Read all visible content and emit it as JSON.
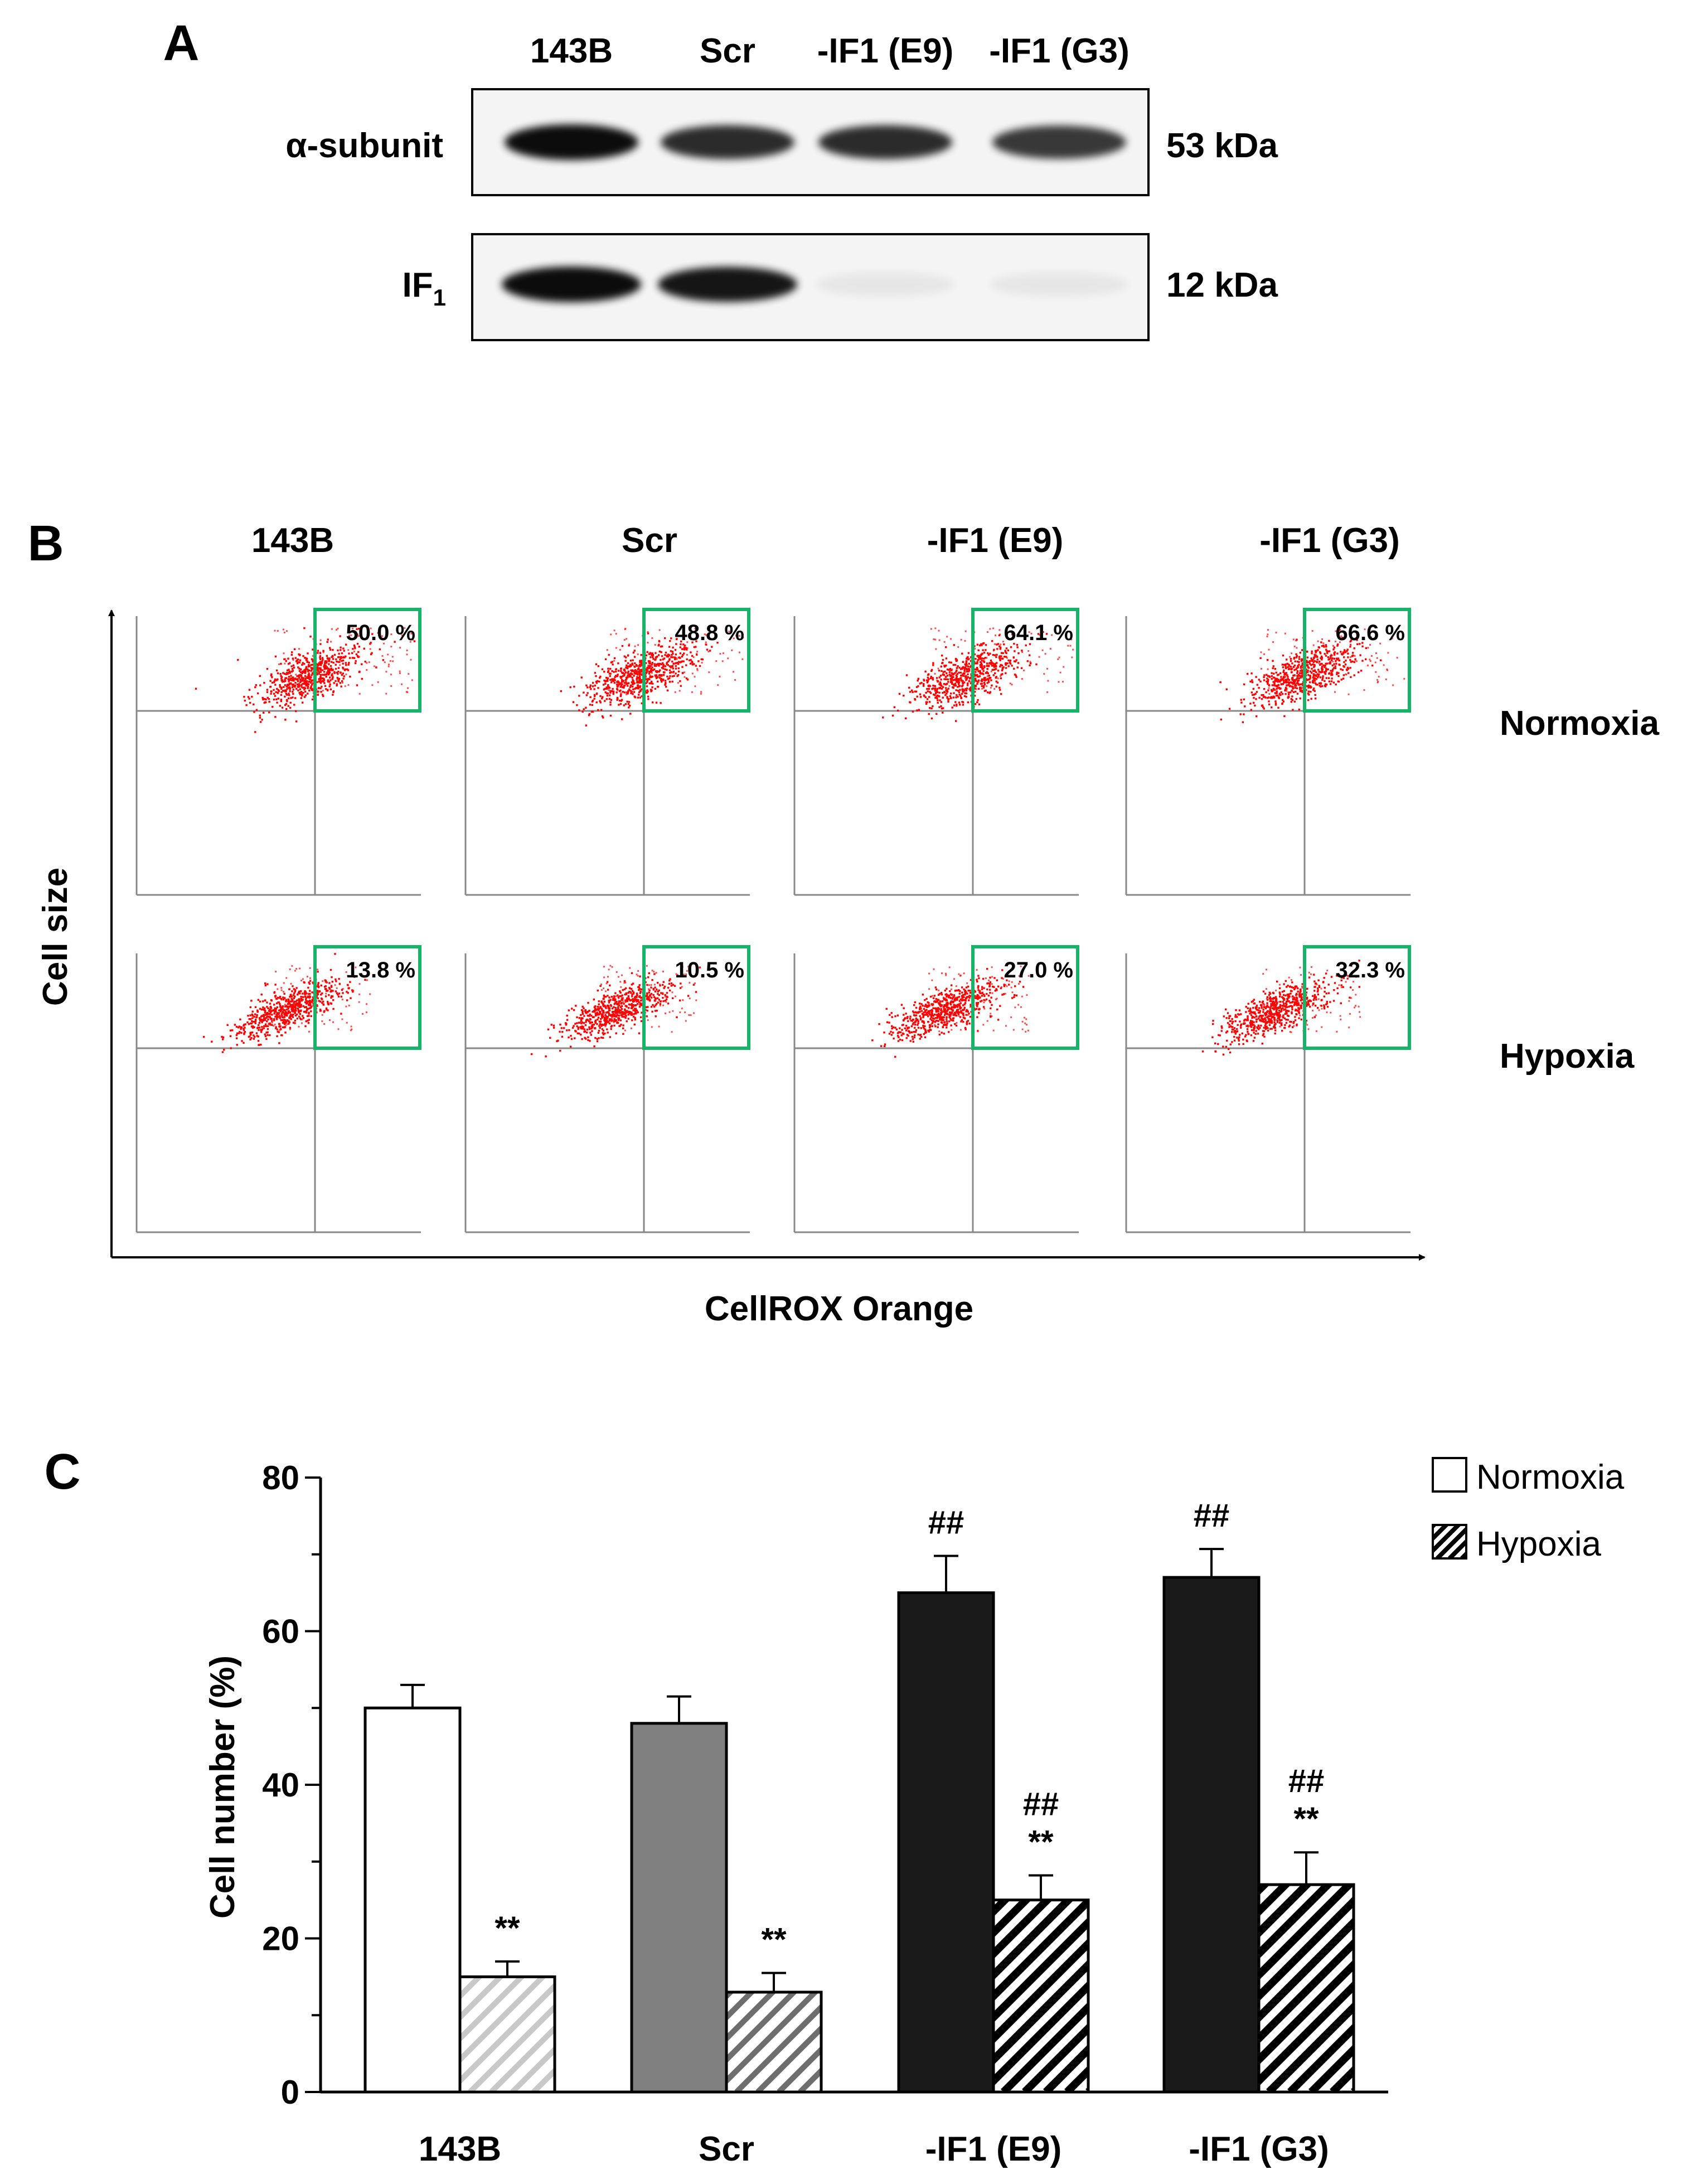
{
  "panel_a": {
    "label": "A",
    "lanes": [
      "143B",
      "Scr",
      "-IF1 (E9)",
      "-IF1 (G3)"
    ],
    "blots": [
      {
        "name": "α-subunit",
        "size": "53 kDa",
        "intensity": [
          1.0,
          0.85,
          0.85,
          0.8
        ]
      },
      {
        "name": "IF",
        "subscript": "1",
        "size": "12 kDa",
        "intensity": [
          1.0,
          0.95,
          0.0,
          0.0
        ]
      }
    ]
  },
  "panel_b": {
    "label": "B",
    "columns": [
      "143B",
      "Scr",
      "-IF1 (E9)",
      "-IF1 (G3)"
    ],
    "rows": [
      "Normoxia",
      "Hypoxia"
    ],
    "percents": [
      [
        "50.0 %",
        "48.8 %",
        "64.1 %",
        "66.6 %"
      ],
      [
        "13.8 %",
        "10.5 %",
        "27.0 %",
        "32.3 %"
      ]
    ],
    "ylabel": "Cell size",
    "xlabel": "CellROX Orange",
    "dot_color": "#ff0000",
    "gate_color": "#16b368"
  },
  "chart_data": {
    "type": "bar",
    "label": "C",
    "categories": [
      "143B",
      "Scr",
      "-IF1 (E9)",
      "-IF1 (G3)"
    ],
    "ylabel": "Cell number (%)",
    "ylim": [
      0,
      80
    ],
    "yticks": [
      0,
      20,
      40,
      60,
      80
    ],
    "series": [
      {
        "name": "Normoxia",
        "values": [
          50,
          48,
          65,
          67
        ],
        "errors": [
          3,
          3.5,
          4.8,
          3.7
        ],
        "colors": [
          "#ffffff",
          "#808080",
          "#1a1a1a",
          "#1a1a1a"
        ]
      },
      {
        "name": "Hypoxia",
        "values": [
          15,
          13,
          25,
          27
        ],
        "errors": [
          2,
          2.5,
          3.2,
          4.2
        ],
        "hatch": [
          "#c8c8c8",
          "#6e6e6e",
          "#000000",
          "#000000"
        ]
      }
    ],
    "annotations": [
      {
        "category": 0,
        "series": 1,
        "lines": [
          "**"
        ]
      },
      {
        "category": 1,
        "series": 1,
        "lines": [
          "**"
        ]
      },
      {
        "category": 2,
        "series": 0,
        "lines": [
          "##"
        ]
      },
      {
        "category": 2,
        "series": 1,
        "lines": [
          "##",
          "**"
        ]
      },
      {
        "category": 3,
        "series": 0,
        "lines": [
          "##"
        ]
      },
      {
        "category": 3,
        "series": 1,
        "lines": [
          "##",
          "**"
        ]
      }
    ],
    "legend_position": "top-right"
  }
}
